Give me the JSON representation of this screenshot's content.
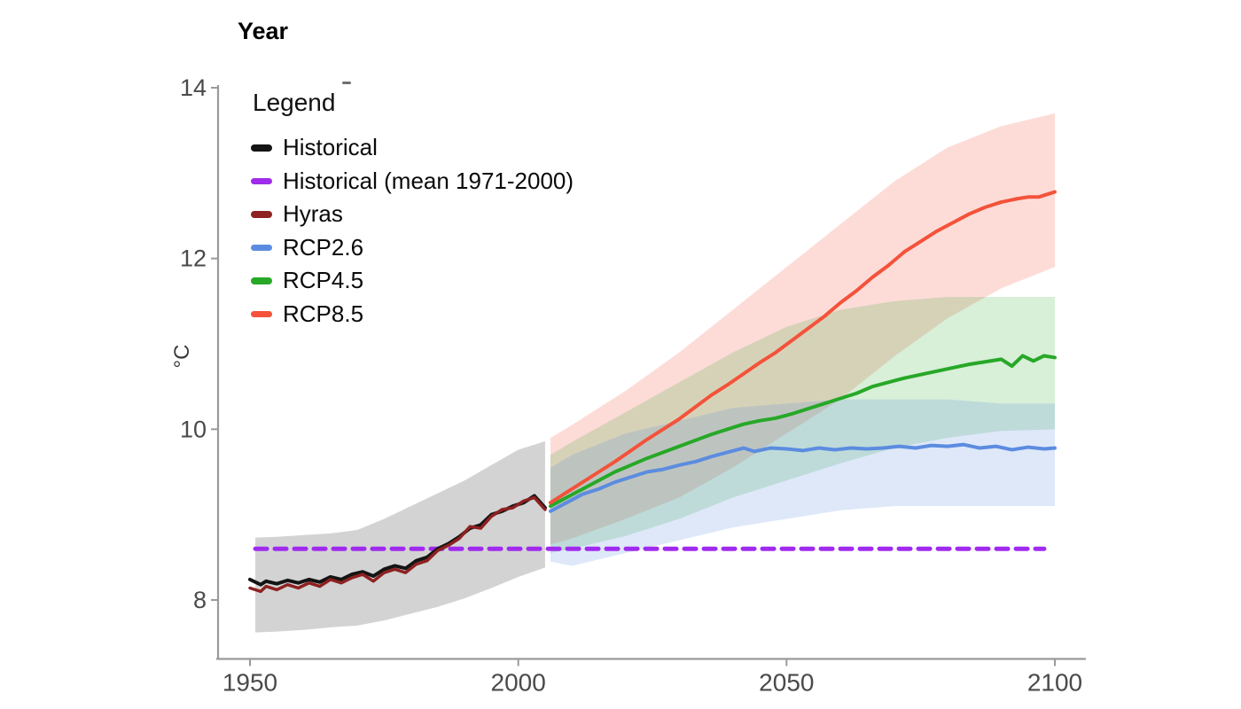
{
  "page": {
    "background": "#ffffff"
  },
  "legend": {
    "title": "Legend",
    "items": [
      {
        "label": "Historical",
        "color": "#141414"
      },
      {
        "label": "Historical (mean 1971-2000)",
        "color": "#9e2cea"
      },
      {
        "label": "Hyras",
        "color": "#8e2121"
      },
      {
        "label": "RCP2.6",
        "color": "#5c8ce0"
      },
      {
        "label": "RCP4.5",
        "color": "#27a827"
      },
      {
        "label": "RCP8.5",
        "color": "#f4523a"
      }
    ]
  },
  "chart_data": {
    "type": "line",
    "title": "",
    "xlabel": "Year",
    "ylabel": "°C",
    "x_ticks": [
      1950,
      2000,
      2050,
      2100
    ],
    "y_ticks": [
      8,
      10,
      12,
      14
    ],
    "xlim": [
      1944,
      2106
    ],
    "ylim": [
      7.3,
      14
    ],
    "grid": false,
    "legend_position": "inside-top-left",
    "axis_color": "#9a9a9a",
    "tick_label_color": "#4a4a4a",
    "reference_line": {
      "name": "Historical (mean 1971-2000)",
      "value": 8.6,
      "x_start": 1951,
      "x_end": 2098,
      "color": "#a02bef",
      "style": "dashed",
      "width": 5
    },
    "bands": [
      {
        "name": "historical-uncertainty",
        "color": "#9e9e9e",
        "opacity": 0.45,
        "years": [
          1951,
          1955,
          1960,
          1965,
          1970,
          1975,
          1980,
          1985,
          1990,
          1995,
          2000,
          2005
        ],
        "top": [
          8.73,
          8.74,
          8.76,
          8.78,
          8.82,
          8.95,
          9.1,
          9.25,
          9.4,
          9.58,
          9.76,
          9.86
        ],
        "bottom": [
          7.62,
          7.63,
          7.65,
          7.68,
          7.7,
          7.76,
          7.84,
          7.92,
          8.02,
          8.14,
          8.27,
          8.38
        ]
      },
      {
        "name": "rcp85-uncertainty",
        "color": "#f4523a",
        "opacity": 0.2,
        "years": [
          2006,
          2010,
          2020,
          2030,
          2040,
          2050,
          2060,
          2070,
          2080,
          2090,
          2100
        ],
        "top": [
          9.9,
          10.05,
          10.45,
          10.9,
          11.4,
          11.9,
          12.4,
          12.9,
          13.3,
          13.55,
          13.7
        ],
        "bottom": [
          8.65,
          8.72,
          8.95,
          9.2,
          9.55,
          9.95,
          10.35,
          10.85,
          11.3,
          11.65,
          11.9
        ]
      },
      {
        "name": "rcp45-uncertainty",
        "color": "#27a827",
        "opacity": 0.18,
        "years": [
          2006,
          2010,
          2020,
          2030,
          2040,
          2050,
          2060,
          2070,
          2080,
          2090,
          2100
        ],
        "top": [
          9.7,
          9.85,
          10.2,
          10.55,
          10.9,
          11.2,
          11.4,
          11.5,
          11.55,
          11.55,
          11.55
        ],
        "bottom": [
          8.55,
          8.6,
          8.75,
          8.95,
          9.2,
          9.4,
          9.6,
          9.78,
          9.9,
          9.98,
          10.0
        ]
      },
      {
        "name": "rcp26-uncertainty",
        "color": "#5c8ce0",
        "opacity": 0.2,
        "years": [
          2006,
          2010,
          2020,
          2030,
          2040,
          2050,
          2060,
          2070,
          2080,
          2090,
          2100
        ],
        "top": [
          9.55,
          9.7,
          9.95,
          10.1,
          10.25,
          10.3,
          10.35,
          10.35,
          10.35,
          10.3,
          10.3
        ],
        "bottom": [
          8.45,
          8.4,
          8.55,
          8.7,
          8.85,
          8.95,
          9.05,
          9.1,
          9.1,
          9.1,
          9.1
        ]
      }
    ],
    "series": [
      {
        "name": "Historical",
        "color": "#141414",
        "width": 4,
        "data": [
          [
            1950,
            8.24
          ],
          [
            1952,
            8.18
          ],
          [
            1953,
            8.22
          ],
          [
            1955,
            8.19
          ],
          [
            1957,
            8.23
          ],
          [
            1959,
            8.2
          ],
          [
            1961,
            8.24
          ],
          [
            1963,
            8.21
          ],
          [
            1965,
            8.27
          ],
          [
            1967,
            8.24
          ],
          [
            1969,
            8.3
          ],
          [
            1971,
            8.33
          ],
          [
            1973,
            8.28
          ],
          [
            1975,
            8.36
          ],
          [
            1977,
            8.4
          ],
          [
            1979,
            8.37
          ],
          [
            1981,
            8.46
          ],
          [
            1983,
            8.5
          ],
          [
            1985,
            8.6
          ],
          [
            1987,
            8.66
          ],
          [
            1989,
            8.74
          ],
          [
            1991,
            8.84
          ],
          [
            1993,
            8.88
          ],
          [
            1995,
            9.0
          ],
          [
            1997,
            9.04
          ],
          [
            1999,
            9.1
          ],
          [
            2001,
            9.14
          ],
          [
            2003,
            9.22
          ],
          [
            2005,
            9.08
          ]
        ]
      },
      {
        "name": "Hyras",
        "color": "#8e2121",
        "width": 3.5,
        "data": [
          [
            1950,
            8.14
          ],
          [
            1952,
            8.1
          ],
          [
            1953,
            8.16
          ],
          [
            1955,
            8.12
          ],
          [
            1957,
            8.18
          ],
          [
            1959,
            8.14
          ],
          [
            1961,
            8.2
          ],
          [
            1963,
            8.16
          ],
          [
            1965,
            8.24
          ],
          [
            1967,
            8.2
          ],
          [
            1969,
            8.26
          ],
          [
            1971,
            8.3
          ],
          [
            1973,
            8.22
          ],
          [
            1975,
            8.32
          ],
          [
            1977,
            8.36
          ],
          [
            1979,
            8.32
          ],
          [
            1981,
            8.42
          ],
          [
            1983,
            8.46
          ],
          [
            1985,
            8.58
          ],
          [
            1987,
            8.64
          ],
          [
            1989,
            8.72
          ],
          [
            1991,
            8.86
          ],
          [
            1993,
            8.84
          ],
          [
            1995,
            8.98
          ],
          [
            1997,
            9.06
          ],
          [
            1999,
            9.08
          ],
          [
            2001,
            9.16
          ],
          [
            2003,
            9.2
          ],
          [
            2005,
            9.06
          ]
        ]
      },
      {
        "name": "RCP2.6",
        "color": "#5c8ce0",
        "width": 4,
        "data": [
          [
            2006,
            9.04
          ],
          [
            2009,
            9.14
          ],
          [
            2012,
            9.24
          ],
          [
            2015,
            9.3
          ],
          [
            2018,
            9.38
          ],
          [
            2021,
            9.44
          ],
          [
            2024,
            9.5
          ],
          [
            2027,
            9.53
          ],
          [
            2030,
            9.58
          ],
          [
            2033,
            9.62
          ],
          [
            2036,
            9.68
          ],
          [
            2039,
            9.73
          ],
          [
            2042,
            9.78
          ],
          [
            2044,
            9.74
          ],
          [
            2047,
            9.78
          ],
          [
            2050,
            9.77
          ],
          [
            2053,
            9.75
          ],
          [
            2056,
            9.78
          ],
          [
            2059,
            9.76
          ],
          [
            2062,
            9.78
          ],
          [
            2065,
            9.77
          ],
          [
            2068,
            9.78
          ],
          [
            2071,
            9.8
          ],
          [
            2074,
            9.78
          ],
          [
            2077,
            9.81
          ],
          [
            2080,
            9.8
          ],
          [
            2083,
            9.82
          ],
          [
            2086,
            9.78
          ],
          [
            2089,
            9.8
          ],
          [
            2092,
            9.76
          ],
          [
            2095,
            9.79
          ],
          [
            2098,
            9.77
          ],
          [
            2100,
            9.78
          ]
        ]
      },
      {
        "name": "RCP4.5",
        "color": "#27a827",
        "width": 4,
        "data": [
          [
            2006,
            9.1
          ],
          [
            2009,
            9.2
          ],
          [
            2012,
            9.3
          ],
          [
            2015,
            9.4
          ],
          [
            2018,
            9.5
          ],
          [
            2021,
            9.58
          ],
          [
            2024,
            9.66
          ],
          [
            2027,
            9.73
          ],
          [
            2030,
            9.8
          ],
          [
            2033,
            9.87
          ],
          [
            2036,
            9.94
          ],
          [
            2039,
            10.0
          ],
          [
            2042,
            10.06
          ],
          [
            2045,
            10.1
          ],
          [
            2048,
            10.13
          ],
          [
            2051,
            10.18
          ],
          [
            2054,
            10.24
          ],
          [
            2057,
            10.3
          ],
          [
            2060,
            10.36
          ],
          [
            2063,
            10.42
          ],
          [
            2066,
            10.5
          ],
          [
            2069,
            10.55
          ],
          [
            2072,
            10.6
          ],
          [
            2075,
            10.64
          ],
          [
            2078,
            10.68
          ],
          [
            2081,
            10.72
          ],
          [
            2084,
            10.76
          ],
          [
            2087,
            10.79
          ],
          [
            2090,
            10.82
          ],
          [
            2092,
            10.74
          ],
          [
            2094,
            10.86
          ],
          [
            2096,
            10.8
          ],
          [
            2098,
            10.86
          ],
          [
            2100,
            10.84
          ]
        ]
      },
      {
        "name": "RCP8.5",
        "color": "#f4523a",
        "width": 4,
        "data": [
          [
            2006,
            9.14
          ],
          [
            2009,
            9.26
          ],
          [
            2012,
            9.38
          ],
          [
            2015,
            9.5
          ],
          [
            2018,
            9.62
          ],
          [
            2021,
            9.75
          ],
          [
            2024,
            9.88
          ],
          [
            2027,
            10.0
          ],
          [
            2030,
            10.12
          ],
          [
            2033,
            10.26
          ],
          [
            2036,
            10.4
          ],
          [
            2039,
            10.52
          ],
          [
            2042,
            10.65
          ],
          [
            2045,
            10.78
          ],
          [
            2048,
            10.9
          ],
          [
            2051,
            11.04
          ],
          [
            2054,
            11.18
          ],
          [
            2057,
            11.32
          ],
          [
            2060,
            11.48
          ],
          [
            2063,
            11.62
          ],
          [
            2066,
            11.78
          ],
          [
            2069,
            11.92
          ],
          [
            2072,
            12.08
          ],
          [
            2075,
            12.2
          ],
          [
            2078,
            12.32
          ],
          [
            2081,
            12.42
          ],
          [
            2084,
            12.52
          ],
          [
            2087,
            12.6
          ],
          [
            2090,
            12.66
          ],
          [
            2093,
            12.7
          ],
          [
            2095,
            12.72
          ],
          [
            2097,
            12.72
          ],
          [
            2099,
            12.76
          ],
          [
            2100,
            12.78
          ]
        ]
      }
    ]
  }
}
